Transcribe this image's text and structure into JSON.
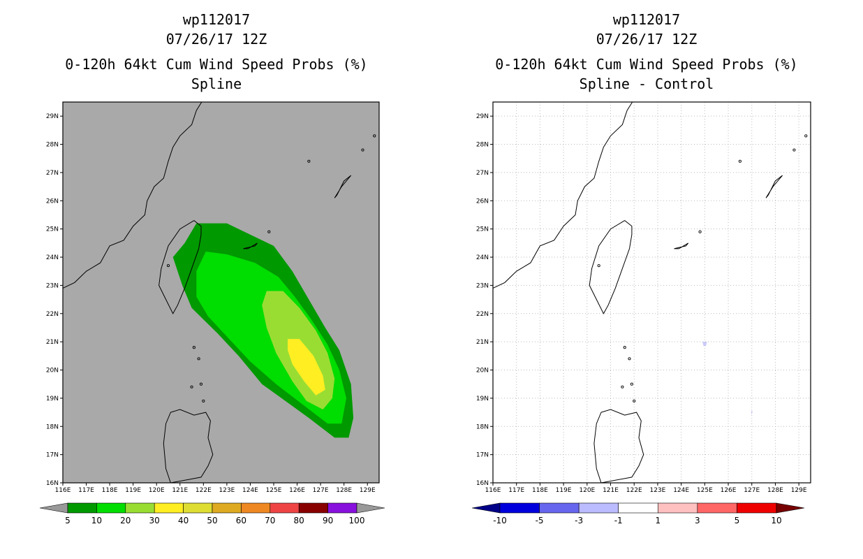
{
  "left": {
    "title_lines": [
      "wp112017",
      "07/26/17 12Z",
      "0-120h 64kt Cum Wind Speed Probs (%)",
      "Spline"
    ]
  },
  "right": {
    "title_lines": [
      "wp112017",
      "07/26/17 12Z",
      "0-120h 64kt Cum Wind Speed Probs (%)",
      "Spline - Control"
    ]
  },
  "chart_data": [
    {
      "type": "map-contour",
      "title": "0-120h 64kt Cum Wind Speed Probs (%) Spline",
      "storm": "wp112017",
      "time": "07/26/17 12Z",
      "x_ticks": [
        "116E",
        "117E",
        "118E",
        "119E",
        "120E",
        "121E",
        "122E",
        "123E",
        "124E",
        "125E",
        "126E",
        "127E",
        "128E",
        "129E"
      ],
      "y_ticks": [
        "16N",
        "17N",
        "18N",
        "19N",
        "20N",
        "21N",
        "22N",
        "23N",
        "24N",
        "25N",
        "26N",
        "27N",
        "28N",
        "29N"
      ],
      "xlim": [
        116,
        129.5
      ],
      "ylim": [
        16,
        29.5
      ],
      "background_color": "#a9a9a9",
      "colorbar_levels": [
        "5",
        "10",
        "20",
        "30",
        "40",
        "50",
        "60",
        "70",
        "80",
        "90",
        "100"
      ],
      "colorbar_colors": [
        "#009900",
        "#00dd00",
        "#99dd33",
        "#ffee22",
        "#dddd33",
        "#ddaa22",
        "#ee8822",
        "#ee4444",
        "#880000",
        "#8811dd"
      ],
      "colorbar_ends": [
        "#999999",
        "#999999"
      ],
      "contours": [
        {
          "level": 5,
          "color": "#009900",
          "polygon": [
            [
              121.7,
              25.2
            ],
            [
              123,
              25.2
            ],
            [
              124,
              24.8
            ],
            [
              125,
              24.4
            ],
            [
              125.8,
              23.5
            ],
            [
              126.5,
              22.5
            ],
            [
              127.2,
              21.5
            ],
            [
              127.8,
              20.7
            ],
            [
              128.3,
              19.5
            ],
            [
              128.4,
              18.3
            ],
            [
              128.2,
              17.6
            ],
            [
              127.6,
              17.6
            ],
            [
              126.5,
              18.3
            ],
            [
              125.5,
              18.9
            ],
            [
              124.5,
              19.5
            ],
            [
              123.5,
              20.5
            ],
            [
              122.6,
              21.3
            ],
            [
              121.5,
              22.2
            ],
            [
              121.1,
              23
            ],
            [
              120.7,
              24
            ],
            [
              121.2,
              24.5
            ]
          ]
        },
        {
          "level": 10,
          "color": "#00dd00",
          "polygon": [
            [
              122.1,
              24.2
            ],
            [
              123,
              24.1
            ],
            [
              124.2,
              23.8
            ],
            [
              125.2,
              23.3
            ],
            [
              125.9,
              22.6
            ],
            [
              126.6,
              21.8
            ],
            [
              127.3,
              20.9
            ],
            [
              127.8,
              20
            ],
            [
              128.1,
              19
            ],
            [
              127.9,
              18.1
            ],
            [
              127.3,
              18.1
            ],
            [
              126.2,
              18.8
            ],
            [
              125.1,
              19.5
            ],
            [
              124,
              20.3
            ],
            [
              123.1,
              21.1
            ],
            [
              122.2,
              21.9
            ],
            [
              121.7,
              22.6
            ],
            [
              121.7,
              23.5
            ]
          ]
        },
        {
          "level": 20,
          "color": "#99dd33",
          "polygon": [
            [
              124.7,
              22.8
            ],
            [
              125.4,
              22.8
            ],
            [
              126.1,
              22.2
            ],
            [
              126.8,
              21.4
            ],
            [
              127.3,
              20.6
            ],
            [
              127.6,
              19.7
            ],
            [
              127.5,
              19
            ],
            [
              127.1,
              18.6
            ],
            [
              126.4,
              18.9
            ],
            [
              125.8,
              19.6
            ],
            [
              125.1,
              20.6
            ],
            [
              124.7,
              21.5
            ],
            [
              124.5,
              22.3
            ]
          ]
        },
        {
          "level": 30,
          "color": "#ffee22",
          "polygon": [
            [
              125.6,
              21.1
            ],
            [
              126.1,
              21.1
            ],
            [
              126.7,
              20.5
            ],
            [
              127.1,
              19.8
            ],
            [
              127.2,
              19.3
            ],
            [
              126.8,
              19.1
            ],
            [
              126.3,
              19.6
            ],
            [
              125.8,
              20.2
            ],
            [
              125.6,
              20.7
            ]
          ]
        }
      ]
    },
    {
      "type": "map-contour",
      "title": "0-120h 64kt Cum Wind Speed Probs (%) Spline - Control",
      "storm": "wp112017",
      "time": "07/26/17 12Z",
      "x_ticks": [
        "116E",
        "117E",
        "118E",
        "119E",
        "120E",
        "121E",
        "122E",
        "123E",
        "124E",
        "125E",
        "126E",
        "127E",
        "128E",
        "129E"
      ],
      "y_ticks": [
        "16N",
        "17N",
        "18N",
        "19N",
        "20N",
        "21N",
        "22N",
        "23N",
        "24N",
        "25N",
        "26N",
        "27N",
        "28N",
        "29N"
      ],
      "xlim": [
        116,
        129.5
      ],
      "ylim": [
        16,
        29.5
      ],
      "grid": true,
      "background_color": "#ffffff",
      "colorbar_levels": [
        "-10",
        "-5",
        "-3",
        "-1",
        "1",
        "3",
        "5",
        "10"
      ],
      "colorbar_colors": [
        "#0000dd",
        "#6666ee",
        "#bbbbff",
        "#ffffff",
        "#ffc0c0",
        "#ff6666",
        "#ee0000"
      ],
      "colorbar_ends": [
        "#000088",
        "#770000"
      ],
      "contours": [
        {
          "level": -1,
          "color": "#ccccff",
          "polygon": [
            [
              124.9,
              21.0
            ],
            [
              125.1,
              21.0
            ],
            [
              125.05,
              20.85
            ],
            [
              124.95,
              20.85
            ]
          ]
        },
        {
          "level": -1,
          "color": "#ccccff",
          "polygon": [
            [
              126.97,
              18.55
            ],
            [
              127.03,
              18.55
            ],
            [
              127.0,
              18.4
            ]
          ]
        }
      ]
    }
  ]
}
